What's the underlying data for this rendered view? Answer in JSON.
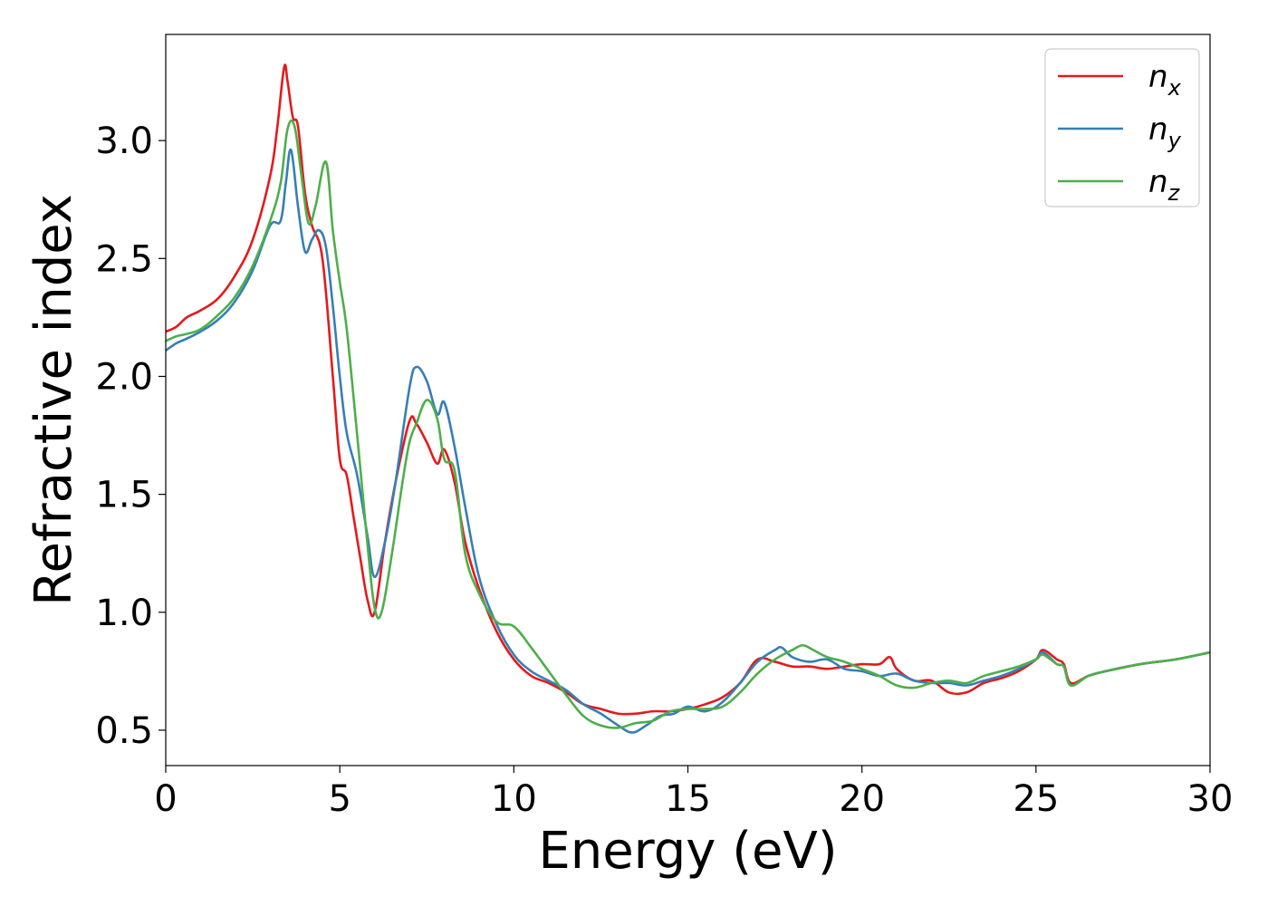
{
  "chart_data": {
    "type": "line",
    "xlabel": "Energy (eV)",
    "ylabel": "Refractive index",
    "xlim": [
      0,
      30
    ],
    "ylim": [
      0.35,
      3.45
    ],
    "xticks": [
      0,
      5,
      10,
      15,
      20,
      25,
      30
    ],
    "xtick_labels": [
      "0",
      "5",
      "10",
      "15",
      "20",
      "25",
      "30"
    ],
    "yticks": [
      0.5,
      1.0,
      1.5,
      2.0,
      2.5,
      3.0
    ],
    "ytick_labels": [
      "0.5",
      "1.0",
      "1.5",
      "2.0",
      "2.5",
      "3.0"
    ],
    "grid": false,
    "legend_position": "top-right",
    "series": [
      {
        "name": "n",
        "subscript": "x",
        "color": "#e41a1c",
        "x": [
          0,
          0.3,
          0.6,
          1.0,
          1.5,
          2.0,
          2.5,
          3.0,
          3.2,
          3.4,
          3.5,
          3.65,
          3.8,
          4.0,
          4.2,
          4.5,
          4.8,
          5.0,
          5.2,
          5.4,
          5.6,
          5.8,
          6.0,
          6.3,
          6.6,
          7.0,
          7.2,
          7.5,
          7.8,
          8.0,
          8.3,
          8.6,
          9.0,
          9.5,
          10.0,
          10.5,
          11.0,
          11.5,
          12.0,
          12.5,
          13.0,
          13.5,
          14.0,
          14.5,
          15.0,
          15.5,
          16.0,
          16.5,
          17.0,
          17.5,
          18.0,
          18.5,
          19.0,
          19.5,
          20.0,
          20.5,
          20.8,
          21.0,
          21.5,
          22.0,
          22.5,
          23.0,
          23.5,
          24.0,
          24.5,
          25.0,
          25.2,
          25.6,
          25.8,
          26.0,
          26.5,
          27.0,
          28.0,
          29.0,
          30.0
        ],
        "y": [
          2.19,
          2.21,
          2.25,
          2.28,
          2.33,
          2.43,
          2.58,
          2.85,
          3.05,
          3.31,
          3.25,
          3.1,
          3.06,
          2.78,
          2.64,
          2.5,
          2.0,
          1.65,
          1.58,
          1.4,
          1.22,
          1.05,
          1.0,
          1.3,
          1.55,
          1.81,
          1.8,
          1.72,
          1.63,
          1.69,
          1.55,
          1.3,
          1.1,
          0.92,
          0.8,
          0.73,
          0.7,
          0.66,
          0.61,
          0.59,
          0.57,
          0.57,
          0.58,
          0.58,
          0.59,
          0.61,
          0.64,
          0.7,
          0.8,
          0.79,
          0.77,
          0.77,
          0.76,
          0.77,
          0.78,
          0.78,
          0.81,
          0.76,
          0.71,
          0.71,
          0.66,
          0.66,
          0.7,
          0.72,
          0.75,
          0.8,
          0.84,
          0.8,
          0.78,
          0.7,
          0.73,
          0.75,
          0.78,
          0.8,
          0.83
        ]
      },
      {
        "name": "n",
        "subscript": "y",
        "color": "#377eb8",
        "x": [
          0,
          0.3,
          0.6,
          1.0,
          1.5,
          2.0,
          2.5,
          3.0,
          3.3,
          3.45,
          3.6,
          3.8,
          4.0,
          4.2,
          4.4,
          4.6,
          4.8,
          5.0,
          5.2,
          5.5,
          5.8,
          6.0,
          6.3,
          6.6,
          7.0,
          7.2,
          7.5,
          7.8,
          8.0,
          8.3,
          8.6,
          9.0,
          9.5,
          10.0,
          10.5,
          11.0,
          11.5,
          12.0,
          12.5,
          13.0,
          13.4,
          13.8,
          14.2,
          14.6,
          15.0,
          15.5,
          16.0,
          16.5,
          17.0,
          17.5,
          17.7,
          18.0,
          18.5,
          19.0,
          19.5,
          20.0,
          20.5,
          21.0,
          21.5,
          22.0,
          22.5,
          23.0,
          23.5,
          24.0,
          24.5,
          25.0,
          25.2,
          25.6,
          25.8,
          26.0,
          26.5,
          27.0,
          28.0,
          29.0,
          30.0
        ],
        "y": [
          2.11,
          2.14,
          2.16,
          2.19,
          2.24,
          2.32,
          2.45,
          2.64,
          2.66,
          2.82,
          2.96,
          2.72,
          2.53,
          2.58,
          2.62,
          2.55,
          2.3,
          2.0,
          1.76,
          1.58,
          1.32,
          1.15,
          1.3,
          1.55,
          1.95,
          2.04,
          1.98,
          1.84,
          1.89,
          1.7,
          1.45,
          1.15,
          0.95,
          0.82,
          0.75,
          0.71,
          0.67,
          0.61,
          0.57,
          0.52,
          0.49,
          0.52,
          0.56,
          0.57,
          0.6,
          0.58,
          0.62,
          0.7,
          0.79,
          0.84,
          0.85,
          0.81,
          0.79,
          0.8,
          0.76,
          0.75,
          0.73,
          0.74,
          0.71,
          0.7,
          0.7,
          0.69,
          0.71,
          0.73,
          0.76,
          0.8,
          0.83,
          0.78,
          0.77,
          0.69,
          0.73,
          0.75,
          0.78,
          0.8,
          0.83
        ]
      },
      {
        "name": "n",
        "subscript": "z",
        "color": "#4daf4a",
        "x": [
          0,
          0.3,
          0.6,
          1.0,
          1.5,
          2.0,
          2.5,
          3.0,
          3.3,
          3.5,
          3.7,
          3.9,
          4.1,
          4.3,
          4.6,
          4.8,
          5.0,
          5.2,
          5.5,
          5.8,
          6.0,
          6.2,
          6.5,
          6.8,
          7.0,
          7.2,
          7.5,
          7.8,
          8.0,
          8.3,
          8.6,
          9.0,
          9.5,
          10.0,
          10.5,
          11.0,
          11.5,
          12.0,
          12.5,
          13.0,
          13.5,
          14.0,
          14.5,
          15.0,
          15.5,
          16.0,
          16.5,
          17.0,
          17.5,
          18.0,
          18.3,
          18.6,
          19.0,
          19.5,
          20.0,
          20.5,
          21.0,
          21.5,
          22.0,
          22.5,
          23.0,
          23.5,
          24.0,
          24.5,
          25.0,
          25.2,
          25.6,
          25.8,
          26.0,
          26.5,
          27.0,
          28.0,
          29.0,
          30.0
        ],
        "y": [
          2.15,
          2.17,
          2.18,
          2.2,
          2.26,
          2.34,
          2.47,
          2.66,
          2.82,
          3.05,
          3.06,
          2.85,
          2.65,
          2.72,
          2.91,
          2.62,
          2.4,
          2.2,
          1.75,
          1.28,
          1.02,
          1.0,
          1.25,
          1.55,
          1.72,
          1.8,
          1.9,
          1.82,
          1.65,
          1.6,
          1.25,
          1.08,
          0.96,
          0.94,
          0.85,
          0.75,
          0.65,
          0.56,
          0.52,
          0.51,
          0.53,
          0.54,
          0.58,
          0.59,
          0.59,
          0.6,
          0.66,
          0.74,
          0.8,
          0.84,
          0.86,
          0.84,
          0.81,
          0.79,
          0.76,
          0.73,
          0.69,
          0.68,
          0.7,
          0.71,
          0.7,
          0.73,
          0.75,
          0.77,
          0.8,
          0.82,
          0.78,
          0.77,
          0.69,
          0.73,
          0.75,
          0.78,
          0.8,
          0.83
        ]
      }
    ]
  }
}
